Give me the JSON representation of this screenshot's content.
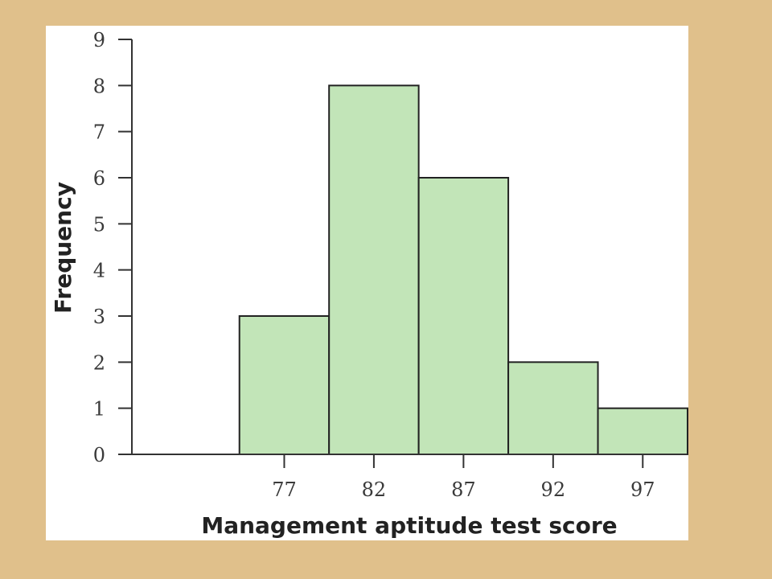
{
  "chart_data": {
    "type": "bar",
    "subtype": "histogram",
    "title": "",
    "xlabel": "Management aptitude test score",
    "ylabel": "Frequency",
    "bin_width": 5,
    "categories": [
      "77",
      "82",
      "87",
      "92",
      "97"
    ],
    "bins": [
      {
        "center": 77,
        "start": 74.5,
        "end": 79.5,
        "value": 3
      },
      {
        "center": 82,
        "start": 79.5,
        "end": 84.5,
        "value": 8
      },
      {
        "center": 87,
        "start": 84.5,
        "end": 89.5,
        "value": 6
      },
      {
        "center": 92,
        "start": 89.5,
        "end": 94.5,
        "value": 2
      },
      {
        "center": 97,
        "start": 94.5,
        "end": 99.5,
        "value": 1
      }
    ],
    "values": [
      3,
      8,
      6,
      2,
      1
    ],
    "xlim": [
      68.5,
      99.5
    ],
    "ylim": [
      0,
      9
    ],
    "yticks": [
      0,
      1,
      2,
      3,
      4,
      5,
      6,
      7,
      8,
      9
    ],
    "xticks": [
      77,
      82,
      87,
      92,
      97
    ],
    "grid": false,
    "legend": "none",
    "colors": {
      "bar_fill": "#c2e5b8",
      "bar_stroke": "#222222",
      "background": "#e0c08b",
      "panel": "#ffffff"
    }
  }
}
